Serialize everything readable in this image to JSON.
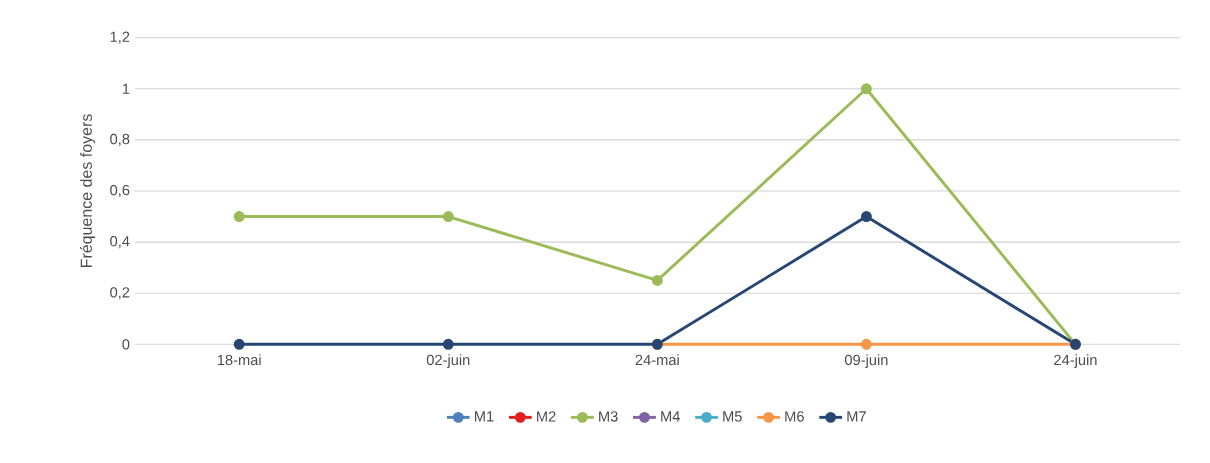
{
  "chart_data": {
    "type": "line",
    "ylabel": "Fréquence des foyers",
    "categories": [
      "18-mai",
      "02-juin",
      "24-mai",
      "09-juin",
      "24-juin"
    ],
    "series": [
      {
        "name": "M1",
        "color": "#4f81bd",
        "values": [
          null,
          null,
          null,
          null,
          null
        ]
      },
      {
        "name": "M2",
        "color": "#e0201f",
        "values": [
          null,
          null,
          null,
          null,
          null
        ]
      },
      {
        "name": "M3",
        "color": "#9bbb59",
        "values": [
          0.5,
          0.5,
          0.25,
          1,
          0
        ]
      },
      {
        "name": "M4",
        "color": "#8064a2",
        "values": [
          null,
          null,
          null,
          null,
          null
        ]
      },
      {
        "name": "M5",
        "color": "#4bacc6",
        "values": [
          null,
          null,
          null,
          null,
          null
        ]
      },
      {
        "name": "M6",
        "color": "#f79646",
        "values": [
          null,
          null,
          0,
          0,
          0
        ]
      },
      {
        "name": "M7",
        "color": "#264673",
        "values": [
          0,
          0,
          0,
          0.5,
          0
        ]
      }
    ],
    "ylim": [
      0,
      1.2
    ],
    "yticks": [
      0,
      {
        "value": 0.2,
        "label": "0,2"
      },
      {
        "value": 0.4,
        "label": "0,4"
      },
      {
        "value": 0.6,
        "label": "0,6"
      },
      {
        "value": 0.8,
        "label": "0,8"
      },
      1,
      {
        "value": 1.2,
        "label": "1,2"
      }
    ],
    "grid": "y",
    "legend": "bottom",
    "marker": "circle",
    "line_style": "solid"
  }
}
